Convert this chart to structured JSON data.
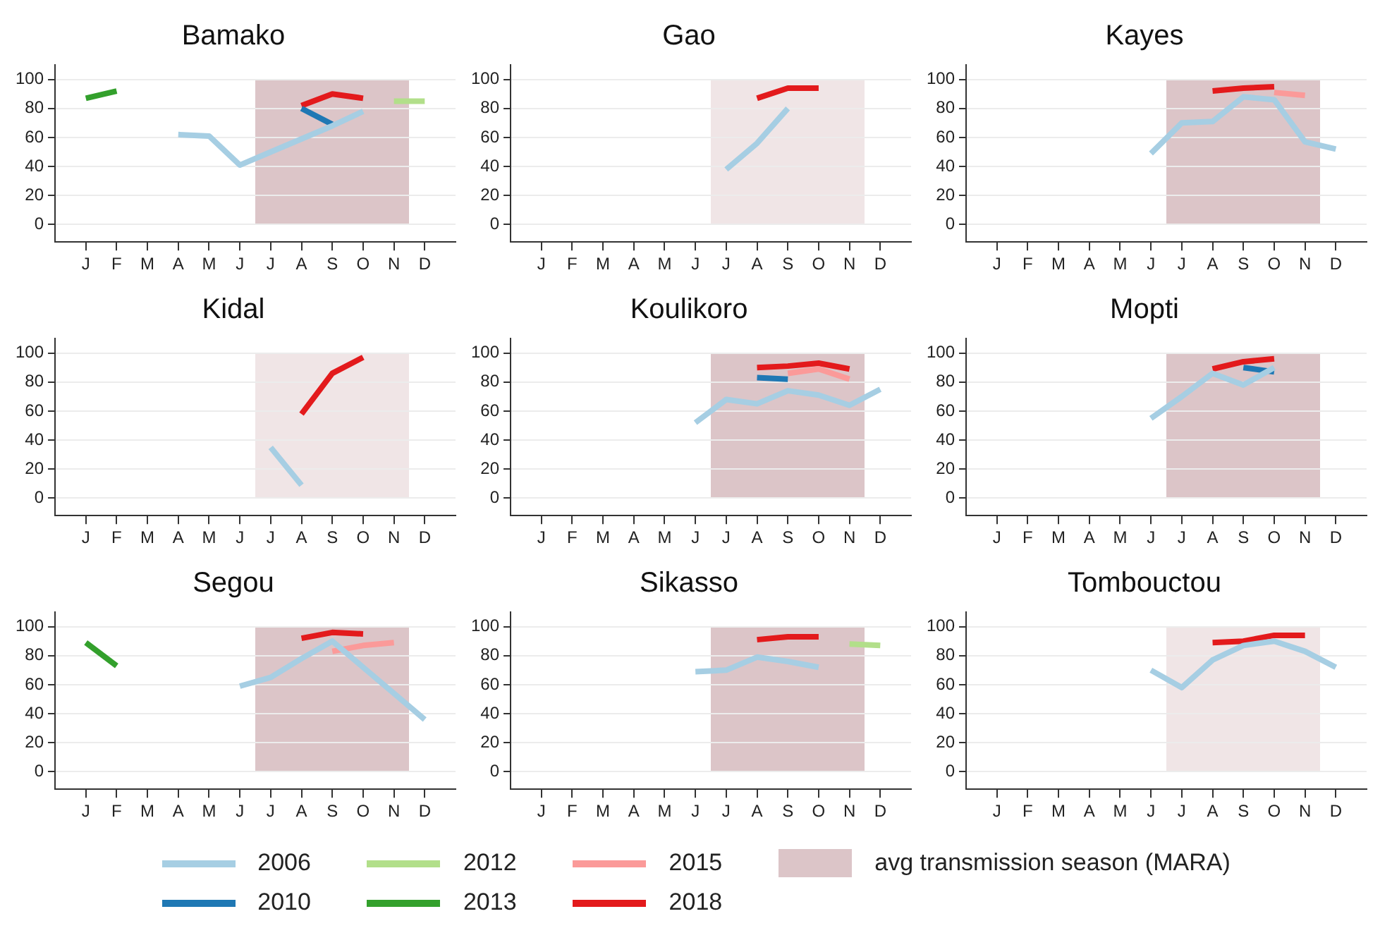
{
  "chart_data": [
    {
      "type": "line",
      "title": "Bamako",
      "categories": [
        "J",
        "F",
        "M",
        "A",
        "M",
        "J",
        "J",
        "A",
        "S",
        "O",
        "N",
        "D"
      ],
      "ylim": [
        -12,
        110
      ],
      "yticks": [
        0,
        20,
        40,
        60,
        80,
        100
      ],
      "grid": "y",
      "legend": "bottom",
      "annotations": [
        "avg transmission season (MARA)"
      ],
      "series": [
        {
          "name": "2006",
          "color": "#a6cee3",
          "values": [
            null,
            null,
            null,
            62,
            61,
            41,
            50,
            59,
            68,
            78,
            null,
            null
          ]
        },
        {
          "name": "2010",
          "color": "#1f78b4",
          "values": [
            null,
            null,
            null,
            null,
            null,
            null,
            null,
            80,
            69,
            null,
            null,
            null
          ]
        },
        {
          "name": "2012",
          "color": "#b2df8a",
          "values": [
            null,
            null,
            null,
            null,
            null,
            null,
            null,
            null,
            null,
            null,
            85,
            85
          ]
        },
        {
          "name": "2013",
          "color": "#33a02c",
          "values": [
            87,
            92,
            null,
            null,
            null,
            null,
            null,
            null,
            null,
            null,
            null,
            null
          ]
        },
        {
          "name": "2018",
          "color": "#e31a1c",
          "values": [
            null,
            null,
            null,
            null,
            null,
            null,
            null,
            82,
            90,
            87,
            null,
            null
          ]
        }
      ]
    },
    {
      "type": "line",
      "title": "Gao",
      "categories": [
        "J",
        "F",
        "M",
        "A",
        "M",
        "J",
        "J",
        "A",
        "S",
        "O",
        "N",
        "D"
      ],
      "ylim": [
        -12,
        110
      ],
      "yticks": [
        0,
        20,
        40,
        60,
        80,
        100
      ],
      "grid": "y",
      "series": [
        {
          "name": "2006",
          "color": "#a6cee3",
          "values": [
            null,
            null,
            null,
            null,
            null,
            null,
            38,
            56,
            80,
            null,
            null,
            null
          ]
        },
        {
          "name": "2018",
          "color": "#e31a1c",
          "values": [
            null,
            null,
            null,
            null,
            null,
            null,
            null,
            87,
            94,
            94,
            null,
            null
          ]
        }
      ]
    },
    {
      "type": "line",
      "title": "Kayes",
      "categories": [
        "J",
        "F",
        "M",
        "A",
        "M",
        "J",
        "J",
        "A",
        "S",
        "O",
        "N",
        "D"
      ],
      "ylim": [
        -12,
        110
      ],
      "yticks": [
        0,
        20,
        40,
        60,
        80,
        100
      ],
      "grid": "y",
      "series": [
        {
          "name": "2006",
          "color": "#a6cee3",
          "values": [
            null,
            null,
            null,
            null,
            null,
            49,
            70,
            71,
            88,
            86,
            57,
            52
          ]
        },
        {
          "name": "2015",
          "color": "#fb9a99",
          "values": [
            null,
            null,
            null,
            null,
            null,
            null,
            null,
            null,
            null,
            91,
            89,
            null
          ]
        },
        {
          "name": "2018",
          "color": "#e31a1c",
          "values": [
            null,
            null,
            null,
            null,
            null,
            null,
            null,
            92,
            94,
            95,
            null,
            null
          ]
        }
      ]
    },
    {
      "type": "line",
      "title": "Kidal",
      "categories": [
        "J",
        "F",
        "M",
        "A",
        "M",
        "J",
        "J",
        "A",
        "S",
        "O",
        "N",
        "D"
      ],
      "ylim": [
        -12,
        110
      ],
      "yticks": [
        0,
        20,
        40,
        60,
        80,
        100
      ],
      "grid": "y",
      "series": [
        {
          "name": "2006",
          "color": "#a6cee3",
          "values": [
            null,
            null,
            null,
            null,
            null,
            null,
            35,
            9,
            null,
            null,
            null,
            null
          ]
        },
        {
          "name": "2018",
          "color": "#e31a1c",
          "values": [
            null,
            null,
            null,
            null,
            null,
            null,
            null,
            58,
            86,
            97,
            null,
            null
          ]
        }
      ]
    },
    {
      "type": "line",
      "title": "Koulikoro",
      "categories": [
        "J",
        "F",
        "M",
        "A",
        "M",
        "J",
        "J",
        "A",
        "S",
        "O",
        "N",
        "D"
      ],
      "ylim": [
        -12,
        110
      ],
      "yticks": [
        0,
        20,
        40,
        60,
        80,
        100
      ],
      "grid": "y",
      "series": [
        {
          "name": "2006",
          "color": "#a6cee3",
          "values": [
            null,
            null,
            null,
            null,
            null,
            52,
            68,
            65,
            74,
            71,
            64,
            75
          ]
        },
        {
          "name": "2010",
          "color": "#1f78b4",
          "values": [
            null,
            null,
            null,
            null,
            null,
            null,
            null,
            83,
            82,
            null,
            null,
            null
          ]
        },
        {
          "name": "2015",
          "color": "#fb9a99",
          "values": [
            null,
            null,
            null,
            null,
            null,
            null,
            null,
            null,
            86,
            89,
            82,
            null
          ]
        },
        {
          "name": "2018",
          "color": "#e31a1c",
          "values": [
            null,
            null,
            null,
            null,
            null,
            null,
            null,
            90,
            91,
            93,
            89,
            null
          ]
        }
      ]
    },
    {
      "type": "line",
      "title": "Mopti",
      "categories": [
        "J",
        "F",
        "M",
        "A",
        "M",
        "J",
        "J",
        "A",
        "S",
        "O",
        "N",
        "D"
      ],
      "ylim": [
        -12,
        110
      ],
      "yticks": [
        0,
        20,
        40,
        60,
        80,
        100
      ],
      "grid": "y",
      "series": [
        {
          "name": "2006",
          "color": "#a6cee3",
          "values": [
            null,
            null,
            null,
            null,
            null,
            55,
            70,
            86,
            78,
            90,
            null,
            null
          ]
        },
        {
          "name": "2010",
          "color": "#1f78b4",
          "values": [
            null,
            null,
            null,
            null,
            null,
            null,
            null,
            null,
            90,
            87,
            null,
            null
          ]
        },
        {
          "name": "2018",
          "color": "#e31a1c",
          "values": [
            null,
            null,
            null,
            null,
            null,
            null,
            null,
            89,
            94,
            96,
            null,
            null
          ]
        }
      ]
    },
    {
      "type": "line",
      "title": "Segou",
      "categories": [
        "J",
        "F",
        "M",
        "A",
        "M",
        "J",
        "J",
        "A",
        "S",
        "O",
        "N",
        "D"
      ],
      "ylim": [
        -12,
        110
      ],
      "yticks": [
        0,
        20,
        40,
        60,
        80,
        100
      ],
      "grid": "y",
      "series": [
        {
          "name": "2006",
          "color": "#a6cee3",
          "values": [
            null,
            null,
            null,
            null,
            null,
            59,
            65,
            78,
            90,
            72,
            54,
            36
          ]
        },
        {
          "name": "2013",
          "color": "#33a02c",
          "values": [
            89,
            73,
            null,
            null,
            null,
            null,
            null,
            null,
            null,
            null,
            null,
            null
          ]
        },
        {
          "name": "2015",
          "color": "#fb9a99",
          "values": [
            null,
            null,
            null,
            null,
            null,
            null,
            null,
            null,
            83,
            87,
            89,
            null
          ]
        },
        {
          "name": "2018",
          "color": "#e31a1c",
          "values": [
            null,
            null,
            null,
            null,
            null,
            null,
            null,
            92,
            96,
            95,
            null,
            null
          ]
        }
      ]
    },
    {
      "type": "line",
      "title": "Sikasso",
      "categories": [
        "J",
        "F",
        "M",
        "A",
        "M",
        "J",
        "J",
        "A",
        "S",
        "O",
        "N",
        "D"
      ],
      "ylim": [
        -12,
        110
      ],
      "yticks": [
        0,
        20,
        40,
        60,
        80,
        100
      ],
      "grid": "y",
      "series": [
        {
          "name": "2006",
          "color": "#a6cee3",
          "values": [
            null,
            null,
            null,
            null,
            null,
            69,
            70,
            79,
            76,
            72,
            null,
            null
          ]
        },
        {
          "name": "2012",
          "color": "#b2df8a",
          "values": [
            null,
            null,
            null,
            null,
            null,
            null,
            null,
            null,
            null,
            null,
            88,
            87
          ]
        },
        {
          "name": "2018",
          "color": "#e31a1c",
          "values": [
            null,
            null,
            null,
            null,
            null,
            null,
            null,
            91,
            93,
            93,
            null,
            null
          ]
        }
      ]
    },
    {
      "type": "line",
      "title": "Tombouctou",
      "categories": [
        "J",
        "F",
        "M",
        "A",
        "M",
        "J",
        "J",
        "A",
        "S",
        "O",
        "N",
        "D"
      ],
      "ylim": [
        -12,
        110
      ],
      "yticks": [
        0,
        20,
        40,
        60,
        80,
        100
      ],
      "grid": "y",
      "series": [
        {
          "name": "2006",
          "color": "#a6cee3",
          "values": [
            null,
            null,
            null,
            null,
            null,
            70,
            58,
            77,
            87,
            90,
            83,
            72
          ]
        },
        {
          "name": "2018",
          "color": "#e31a1c",
          "values": [
            null,
            null,
            null,
            null,
            null,
            null,
            null,
            89,
            90,
            94,
            94,
            null
          ]
        }
      ]
    }
  ]
}
